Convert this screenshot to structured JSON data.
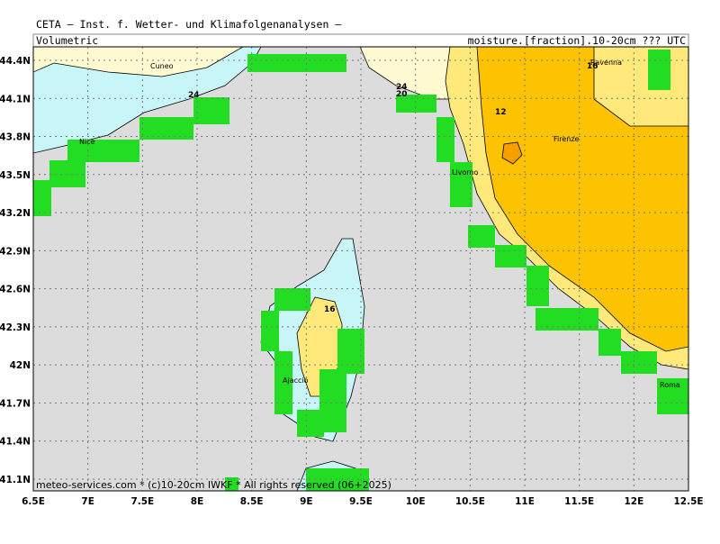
{
  "header": {
    "title": "CETA — Inst. f. Wetter- und Klimafolgenanalysen —",
    "left_label": "Volumetric",
    "right_label": "moisture.[fraction].10-20cm ??? UTC"
  },
  "footer": "meteo-services.com * (c)10-20cm IWKF * All rights reserved (06+2025)",
  "lat_labels": [
    "44.4N",
    "44.1N",
    "43.8N",
    "43.5N",
    "43.2N",
    "42.9N",
    "42.6N",
    "42.3N",
    "42N",
    "41.7N",
    "41.4N",
    "41.1N"
  ],
  "lon_labels": [
    "6.5E",
    "7E",
    "7.5E",
    "8E",
    "8.5E",
    "9E",
    "9.5E",
    "10E",
    "10.5E",
    "11E",
    "11.5E",
    "12E",
    "12.5E"
  ],
  "cities": [
    "Cuneo",
    "Nice",
    "Livorno",
    "Firenze",
    "Ravenna",
    "Ajaccio",
    "Roma"
  ],
  "contour_labels": [
    "24",
    "24",
    "20",
    "12",
    "16",
    "16"
  ]
}
